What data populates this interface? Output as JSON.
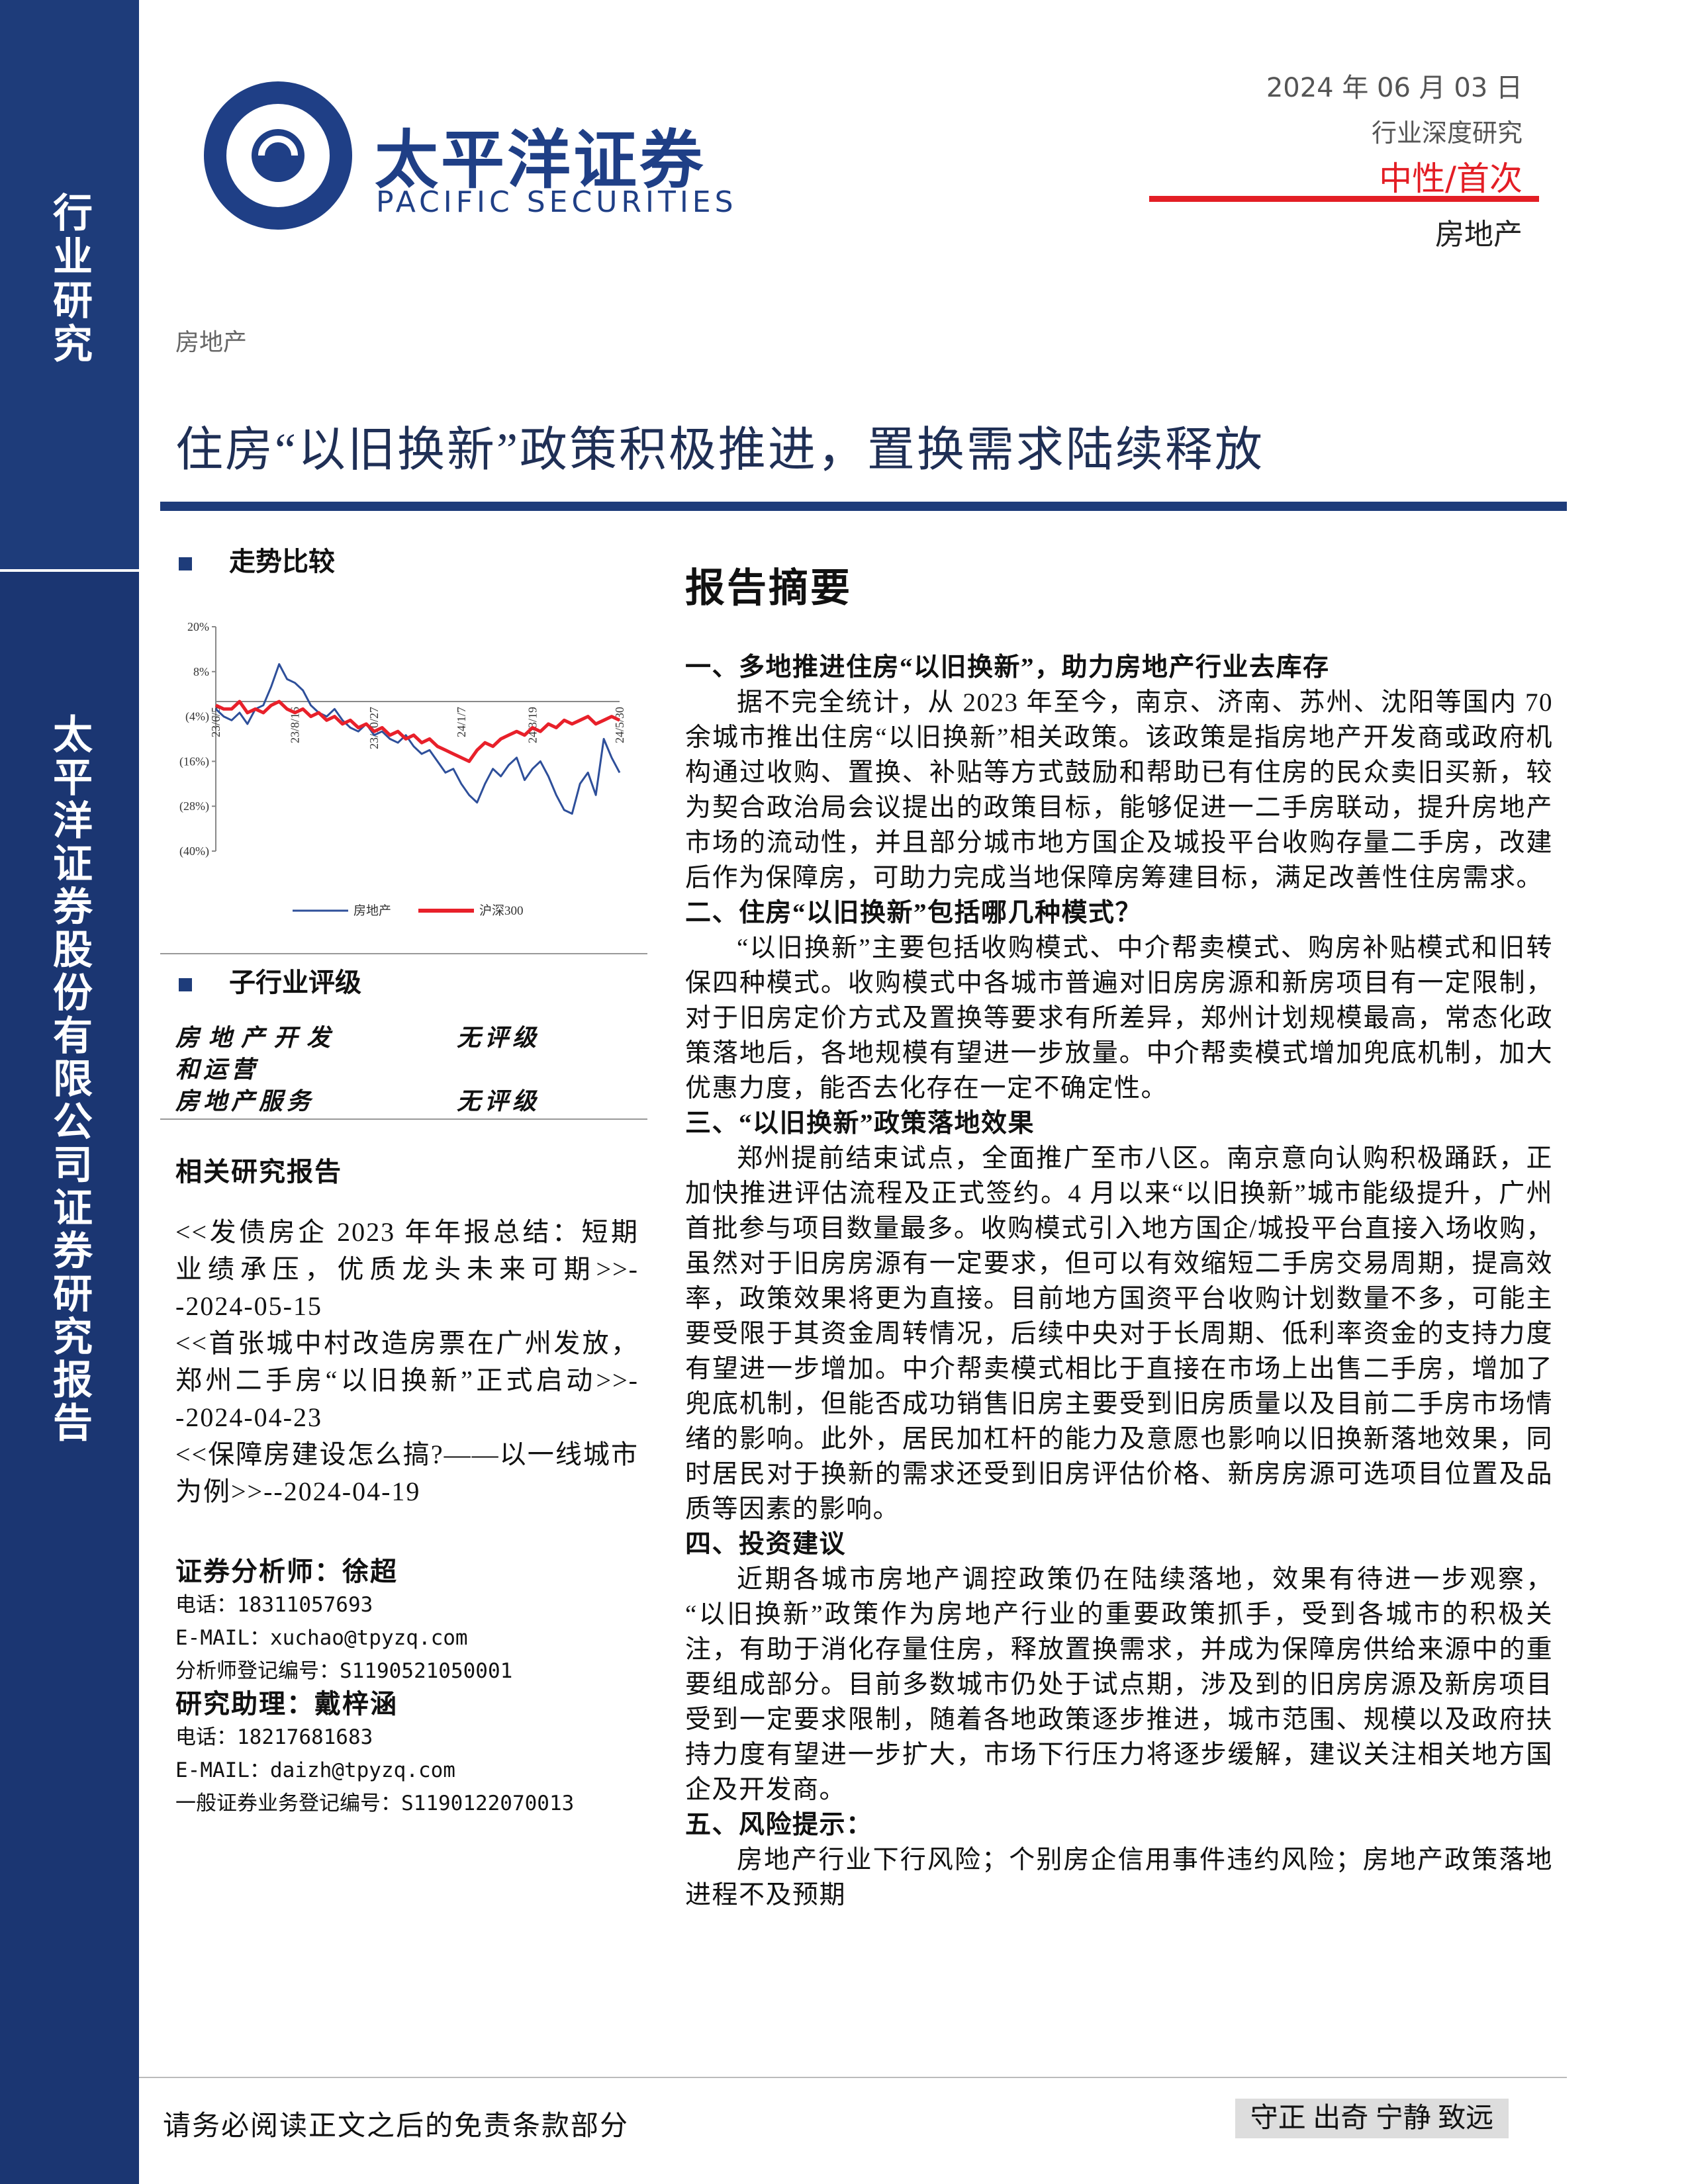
{
  "sidebar": {
    "top": "行业研究",
    "bottom": "太平洋证券股份有限公司证券研究报告"
  },
  "header": {
    "logo_cn": "太平洋证券",
    "logo_en": "PACIFIC SECURITIES",
    "date": "2024 年 06 月 03 日",
    "report_type": "行业深度研究",
    "rating": "中性/首次",
    "industry": "房地产"
  },
  "category": "房地产",
  "title": "住房“以旧换新”政策积极推进，置换需求陆续释放",
  "trend": {
    "title": "走势比较"
  },
  "chart_data": {
    "type": "line",
    "categories": [
      "23/6/5",
      null,
      null,
      null,
      null,
      null,
      null,
      null,
      null,
      null,
      "23/8/16",
      null,
      null,
      null,
      null,
      null,
      null,
      null,
      null,
      null,
      "23/10/27",
      null,
      null,
      null,
      null,
      null,
      null,
      null,
      null,
      null,
      null,
      "24/1/7",
      null,
      null,
      null,
      null,
      null,
      null,
      null,
      null,
      "24/3/19",
      null,
      null,
      null,
      null,
      null,
      null,
      null,
      null,
      null,
      null,
      "24/5/30"
    ],
    "ylim": [
      -40,
      20
    ],
    "yticks": [
      {
        "value": 20,
        "label": "20%"
      },
      {
        "value": 8,
        "label": "8%"
      },
      {
        "value": -4,
        "label": "(4%)"
      },
      {
        "value": -16,
        "label": "(16%)"
      },
      {
        "value": -28,
        "label": "(28%)"
      },
      {
        "value": -40,
        "label": "(40%)"
      }
    ],
    "series": [
      {
        "name": "房地产",
        "color": "#2e4f9a",
        "values": [
          -2,
          -4,
          -5,
          -3,
          -6,
          -2,
          -1,
          4,
          10,
          6,
          5,
          3,
          -1,
          -3,
          -4,
          -2,
          -5,
          -7,
          -8,
          -6,
          -9,
          -8,
          -10,
          -11,
          -9,
          -12,
          -14,
          -13,
          -16,
          -19,
          -18,
          -22,
          -25,
          -27,
          -22,
          -18,
          -20,
          -17,
          -15,
          -21,
          -18,
          -16,
          -20,
          -25,
          -29,
          -30,
          -22,
          -19,
          -25,
          -10,
          -15,
          -19
        ]
      },
      {
        "name": "沪深300",
        "color": "#e8202a",
        "values": [
          -1,
          -2,
          -2,
          0,
          -3,
          -2,
          -3,
          -1,
          0,
          -2,
          -3,
          -2,
          -4,
          -3,
          -5,
          -4,
          -6,
          -5,
          -7,
          -6,
          -8,
          -7,
          -9,
          -8,
          -10,
          -9,
          -11,
          -10,
          -12,
          -13,
          -14,
          -15,
          -16,
          -13,
          -11,
          -12,
          -10,
          -9,
          -8,
          -9,
          -7,
          -8,
          -6,
          -7,
          -5,
          -6,
          -5,
          -4,
          -6,
          -5,
          -4,
          -5
        ]
      }
    ]
  },
  "sub_rating": {
    "title": "子行业评级",
    "rows": [
      [
        "房地产开发和运营",
        "无评级"
      ],
      [
        "房地产服务",
        "无评级"
      ]
    ]
  },
  "related": {
    "title": "相关研究报告",
    "items": [
      "<<发债房企 2023 年年报总结：短期业绩承压，优质龙头未来可期>>--2024-05-15",
      "<<首张城中村改造房票在广州发放，郑州二手房“以旧换新”正式启动>>--2024-04-23",
      "<<保障房建设怎么搞?——以一线城市为例>>--2024-04-19"
    ]
  },
  "analysts": [
    {
      "title": "证券分析师：徐超",
      "lines": [
        "电话：18311057693",
        "E-MAIL：xuchao@tpyzq.com",
        "分析师登记编号：S1190521050001"
      ]
    },
    {
      "title": "研究助理：戴梓涵",
      "lines": [
        "电话：18217681683",
        "E-MAIL：daizh@tpyzq.com",
        "一般证券业务登记编号：S1190122070013"
      ]
    }
  ],
  "summary": {
    "title": "报告摘要",
    "sections": [
      {
        "heading": "一、多地推进住房“以旧换新”，助力房地产行业去库存",
        "text": "据不完全统计，从 2023 年至今，南京、济南、苏州、沈阳等国内 70 余城市推出住房“以旧换新”相关政策。该政策是指房地产开发商或政府机构通过收购、置换、补贴等方式鼓励和帮助已有住房的民众卖旧买新，较为契合政治局会议提出的政策目标，能够促进一二手房联动，提升房地产市场的流动性，并且部分城市地方国企及城投平台收购存量二手房，改建后作为保障房，可助力完成当地保障房筹建目标，满足改善性住房需求。"
      },
      {
        "heading": "二、住房“以旧换新”包括哪几种模式？",
        "text": "“以旧换新”主要包括收购模式、中介帮卖模式、购房补贴模式和旧转保四种模式。收购模式中各城市普遍对旧房房源和新房项目有一定限制，对于旧房定价方式及置换等要求有所差异，郑州计划规模最高，常态化政策落地后，各地规模有望进一步放量。中介帮卖模式增加兜底机制，加大优惠力度，能否去化存在一定不确定性。"
      },
      {
        "heading": "三、“以旧换新”政策落地效果",
        "text": "郑州提前结束试点，全面推广至市八区。南京意向认购积极踊跃，正加快推进评估流程及正式签约。4 月以来“以旧换新”城市能级提升，广州首批参与项目数量最多。收购模式引入地方国企/城投平台直接入场收购，虽然对于旧房房源有一定要求，但可以有效缩短二手房交易周期，提高效率，政策效果将更为直接。目前地方国资平台收购计划数量不多，可能主要受限于其资金周转情况，后续中央对于长周期、低利率资金的支持力度有望进一步增加。中介帮卖模式相比于直接在市场上出售二手房，增加了兜底机制，但能否成功销售旧房主要受到旧房质量以及目前二手房市场情绪的影响。此外，居民加杠杆的能力及意愿也影响以旧换新落地效果，同时居民对于换新的需求还受到旧房评估价格、新房房源可选项目位置及品质等因素的影响。"
      },
      {
        "heading": "四、投资建议",
        "text": "近期各城市房地产调控政策仍在陆续落地，效果有待进一步观察，“以旧换新”政策作为房地产行业的重要政策抓手，受到各城市的积极关注，有助于消化存量住房，释放置换需求，并成为保障房供给来源中的重要组成部分。目前多数城市仍处于试点期，涉及到的旧房房源及新房项目受到一定要求限制，随着各地政策逐步推进，城市范围、规模以及政府扶持力度有望进一步扩大，市场下行压力将逐步缓解，建议关注相关地方国企及开发商。"
      },
      {
        "heading": "五、风险提示：",
        "text": "房地产行业下行风险；个别房企信用事件违约风险；房地产政策落地进程不及预期"
      }
    ]
  },
  "footer": {
    "disclaimer": "请务必阅读正文之后的免责条款部分",
    "motto": "守正 出奇 宁静 致远"
  }
}
